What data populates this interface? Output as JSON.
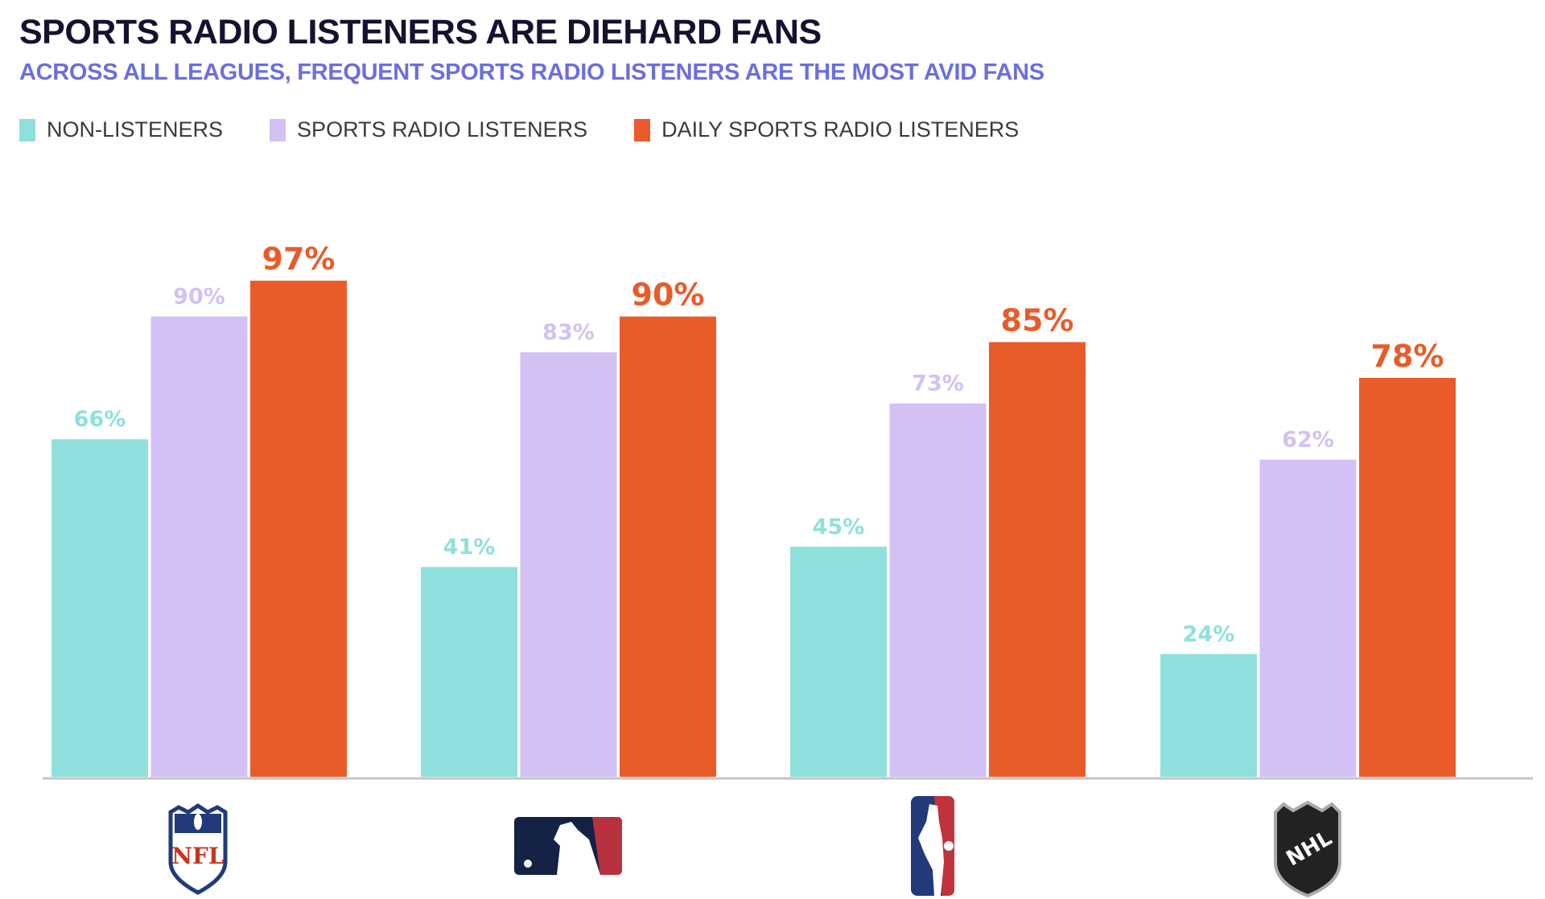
{
  "header": {
    "title": "SPORTS RADIO LISTENERS ARE DIEHARD FANS",
    "subtitle": "ACROSS ALL LEAGUES, FREQUENT SPORTS RADIO LISTENERS ARE THE MOST AVID FANS"
  },
  "chart_data": {
    "type": "bar",
    "title": "SPORTS RADIO LISTENERS ARE DIEHARD FANS",
    "subtitle": "ACROSS ALL LEAGUES, FREQUENT SPORTS RADIO LISTENERS ARE THE MOST AVID FANS",
    "categories": [
      "NFL",
      "MLB",
      "NBA",
      "NHL"
    ],
    "category_display": "logos",
    "series": [
      {
        "name": "NON-LISTENERS",
        "color": "#8fe0dc",
        "values": [
          66,
          41,
          45,
          24
        ],
        "labels": [
          "66%",
          "41%",
          "45%",
          "24%"
        ]
      },
      {
        "name": "SPORTS RADIO LISTENERS",
        "color": "#d3c0f5",
        "values": [
          90,
          83,
          73,
          62
        ],
        "labels": [
          "90%",
          "83%",
          "73%",
          "62%"
        ]
      },
      {
        "name": "DAILY SPORTS RADIO LISTENERS",
        "color": "#ea5b2a",
        "values": [
          97,
          90,
          85,
          78
        ],
        "labels": [
          "97%",
          "90%",
          "85%",
          "78%"
        ]
      }
    ],
    "ylim": [
      0,
      100
    ],
    "unit": "%",
    "grid": false,
    "legend": "top-left",
    "xlabel": "",
    "ylabel": ""
  }
}
